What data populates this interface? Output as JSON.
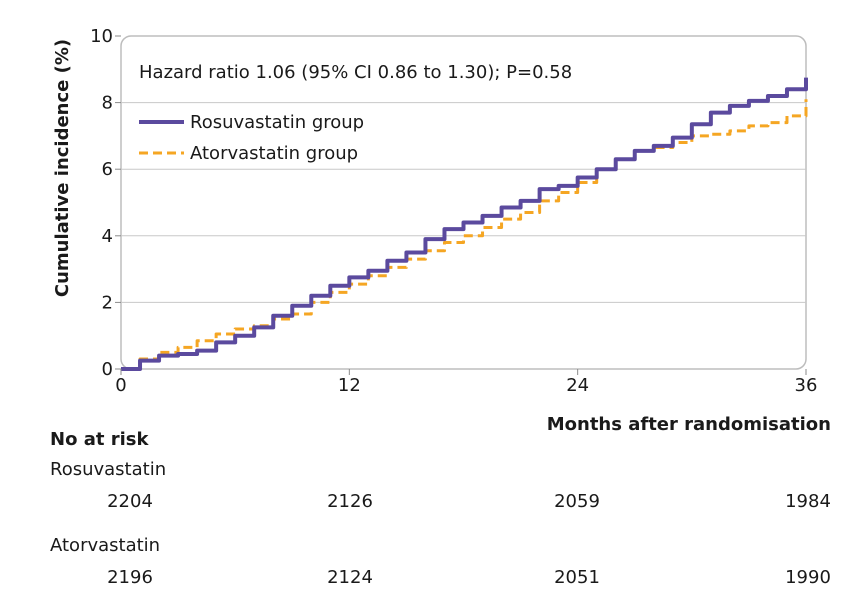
{
  "chart_data": {
    "type": "line",
    "annotation": "Hazard ratio 1.06 (95% CI 0.86 to 1.30); P=0.58",
    "xlabel": "Months after randomisation",
    "ylabel": "Cumulative incidence (%)",
    "xlim": [
      0,
      36
    ],
    "ylim": [
      0,
      10
    ],
    "xticks": [
      0,
      12,
      24,
      36
    ],
    "yticks": [
      0,
      2,
      4,
      6,
      8,
      10
    ],
    "grid": "horizontal",
    "legend_position": "top-left",
    "series": [
      {
        "name": "Rosuvastatin group",
        "color": "#5b4a9e",
        "style": "solid",
        "x": [
          0,
          1,
          2,
          3,
          4,
          5,
          6,
          7,
          8,
          9,
          10,
          11,
          12,
          13,
          14,
          15,
          16,
          17,
          18,
          19,
          20,
          21,
          22,
          23,
          24,
          25,
          26,
          27,
          28,
          29,
          30,
          31,
          32,
          33,
          34,
          35,
          36
        ],
        "values": [
          0,
          0.25,
          0.4,
          0.45,
          0.55,
          0.8,
          1.0,
          1.25,
          1.6,
          1.9,
          2.2,
          2.5,
          2.75,
          2.95,
          3.25,
          3.5,
          3.9,
          4.2,
          4.4,
          4.6,
          4.85,
          5.05,
          5.4,
          5.5,
          5.75,
          6.0,
          6.3,
          6.55,
          6.7,
          6.95,
          7.35,
          7.7,
          7.9,
          8.05,
          8.2,
          8.4,
          8.75
        ]
      },
      {
        "name": "Atorvastatin group",
        "color": "#f5a623",
        "style": "dashed",
        "x": [
          0,
          1,
          2,
          3,
          4,
          5,
          6,
          7,
          8,
          9,
          10,
          11,
          12,
          13,
          14,
          15,
          16,
          17,
          18,
          19,
          20,
          21,
          22,
          23,
          24,
          25,
          26,
          27,
          28,
          29,
          30,
          31,
          32,
          33,
          34,
          35,
          36
        ],
        "values": [
          0,
          0.3,
          0.5,
          0.65,
          0.85,
          1.05,
          1.2,
          1.3,
          1.5,
          1.65,
          2.0,
          2.3,
          2.55,
          2.8,
          3.05,
          3.3,
          3.55,
          3.8,
          4.0,
          4.25,
          4.5,
          4.7,
          5.05,
          5.3,
          5.6,
          6.0,
          6.3,
          6.55,
          6.65,
          6.8,
          7.0,
          7.05,
          7.15,
          7.3,
          7.4,
          7.6,
          8.1
        ]
      }
    ]
  },
  "risk_table": {
    "title": "No at risk",
    "groups": [
      {
        "label": "Rosuvastatin",
        "values": [
          "2204",
          "2126",
          "2059",
          "1984"
        ]
      },
      {
        "label": "Atorvastatin",
        "values": [
          "2196",
          "2124",
          "2051",
          "1990"
        ]
      }
    ]
  }
}
